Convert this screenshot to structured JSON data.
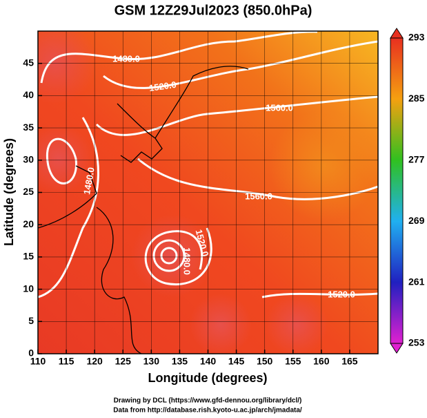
{
  "chart_data": {
    "type": "contour",
    "title": "GSM 12Z29Jul2023 (850.0hPa)",
    "x_label": "Longitude (degrees)",
    "y_label": "Latitude  (degrees)",
    "xlim": [
      110,
      170
    ],
    "xticks": [
      110,
      115,
      120,
      125,
      130,
      135,
      140,
      145,
      150,
      155,
      160,
      165
    ],
    "ylim": [
      0,
      50
    ],
    "yticks": [
      0,
      5,
      10,
      15,
      20,
      25,
      30,
      35,
      40,
      45
    ],
    "grid": true,
    "colorbar_lim": [
      253,
      293
    ],
    "colorbar_ticks": [
      253,
      261,
      269,
      277,
      285,
      293
    ],
    "contour_labels": [
      "1480.0",
      "1520.0",
      "1560.0",
      "1560.0",
      "1520.0",
      "1480.0",
      "1480.0",
      "1520.0"
    ],
    "footer": [
      "Drawing by DCL (https://www.gfd-dennou.org/library/dcl/)",
      "Data from http://database.rish.kyoto-u.ac.jp/arch/jmadata/"
    ]
  }
}
